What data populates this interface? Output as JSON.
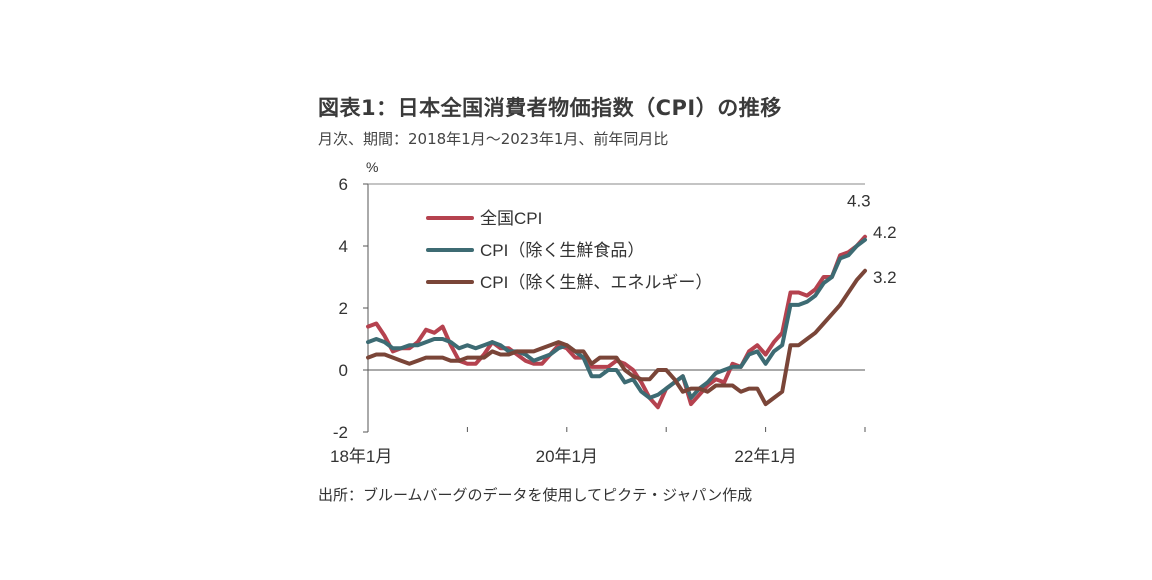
{
  "title": "図表1：日本全国消費者物価指数（CPI）の推移",
  "subtitle": "月次、期間：2018年1月～2023年1月、前年同月比",
  "source": "出所：ブルームバーグのデータを使用してピクテ・ジャパン作成",
  "colors": {
    "all_cpi": "#b5424f",
    "core_cpi": "#3d6b73",
    "core_core_cpi": "#7a4538"
  },
  "chart_data": {
    "type": "line",
    "ylabel": "%",
    "ylim": [
      -2,
      6
    ],
    "yticks": [
      -2,
      0,
      2,
      4,
      6
    ],
    "xtick_labels": [
      {
        "month_index": 0,
        "label": "18年1月"
      },
      {
        "month_index": 24,
        "label": "20年1月"
      },
      {
        "month_index": 48,
        "label": "22年1月"
      }
    ],
    "x_start": "2018-01",
    "x_end": "2023-01",
    "legend_position": "top-left",
    "series": [
      {
        "name": "全国CPI",
        "color": "#b5424f",
        "end_label": "4.3",
        "values": [
          1.4,
          1.5,
          1.1,
          0.6,
          0.7,
          0.7,
          0.9,
          1.3,
          1.2,
          1.4,
          0.8,
          0.3,
          0.2,
          0.2,
          0.5,
          0.9,
          0.7,
          0.7,
          0.5,
          0.3,
          0.2,
          0.2,
          0.5,
          0.8,
          0.7,
          0.4,
          0.4,
          0.1,
          0.1,
          0.1,
          0.3,
          0.2,
          0.0,
          -0.4,
          -0.9,
          -1.2,
          -0.6,
          -0.4,
          -0.2,
          -1.1,
          -0.8,
          -0.5,
          -0.3,
          -0.4,
          0.2,
          0.1,
          0.6,
          0.8,
          0.5,
          0.9,
          1.2,
          2.5,
          2.5,
          2.4,
          2.6,
          3.0,
          3.0,
          3.7,
          3.8,
          4.0,
          4.3
        ]
      },
      {
        "name": "CPI（除く生鮮食品）",
        "color": "#3d6b73",
        "end_label": "4.2",
        "values": [
          0.9,
          1.0,
          0.9,
          0.7,
          0.7,
          0.8,
          0.8,
          0.9,
          1.0,
          1.0,
          0.9,
          0.7,
          0.8,
          0.7,
          0.8,
          0.9,
          0.8,
          0.6,
          0.6,
          0.5,
          0.3,
          0.4,
          0.5,
          0.7,
          0.8,
          0.6,
          0.4,
          -0.2,
          -0.2,
          0.0,
          0.0,
          -0.4,
          -0.3,
          -0.7,
          -0.9,
          -0.8,
          -0.6,
          -0.4,
          -0.2,
          -0.9,
          -0.6,
          -0.4,
          -0.1,
          0.0,
          0.1,
          0.1,
          0.5,
          0.6,
          0.2,
          0.6,
          0.8,
          2.1,
          2.1,
          2.2,
          2.4,
          2.8,
          3.0,
          3.6,
          3.7,
          4.0,
          4.2
        ]
      },
      {
        "name": "CPI（除く生鮮、エネルギー）",
        "color": "#7a4538",
        "end_label": "3.2",
        "values": [
          0.4,
          0.5,
          0.5,
          0.4,
          0.3,
          0.2,
          0.3,
          0.4,
          0.4,
          0.4,
          0.3,
          0.3,
          0.4,
          0.4,
          0.4,
          0.6,
          0.5,
          0.5,
          0.6,
          0.6,
          0.6,
          0.7,
          0.8,
          0.9,
          0.8,
          0.6,
          0.6,
          0.2,
          0.4,
          0.4,
          0.4,
          0.0,
          -0.2,
          -0.3,
          -0.3,
          0.0,
          0.0,
          -0.3,
          -0.7,
          -0.6,
          -0.6,
          -0.7,
          -0.5,
          -0.5,
          -0.5,
          -0.7,
          -0.6,
          -0.6,
          -1.1,
          -0.9,
          -0.7,
          0.8,
          0.8,
          1.0,
          1.2,
          1.5,
          1.8,
          2.1,
          2.5,
          2.9,
          3.2
        ]
      }
    ]
  }
}
